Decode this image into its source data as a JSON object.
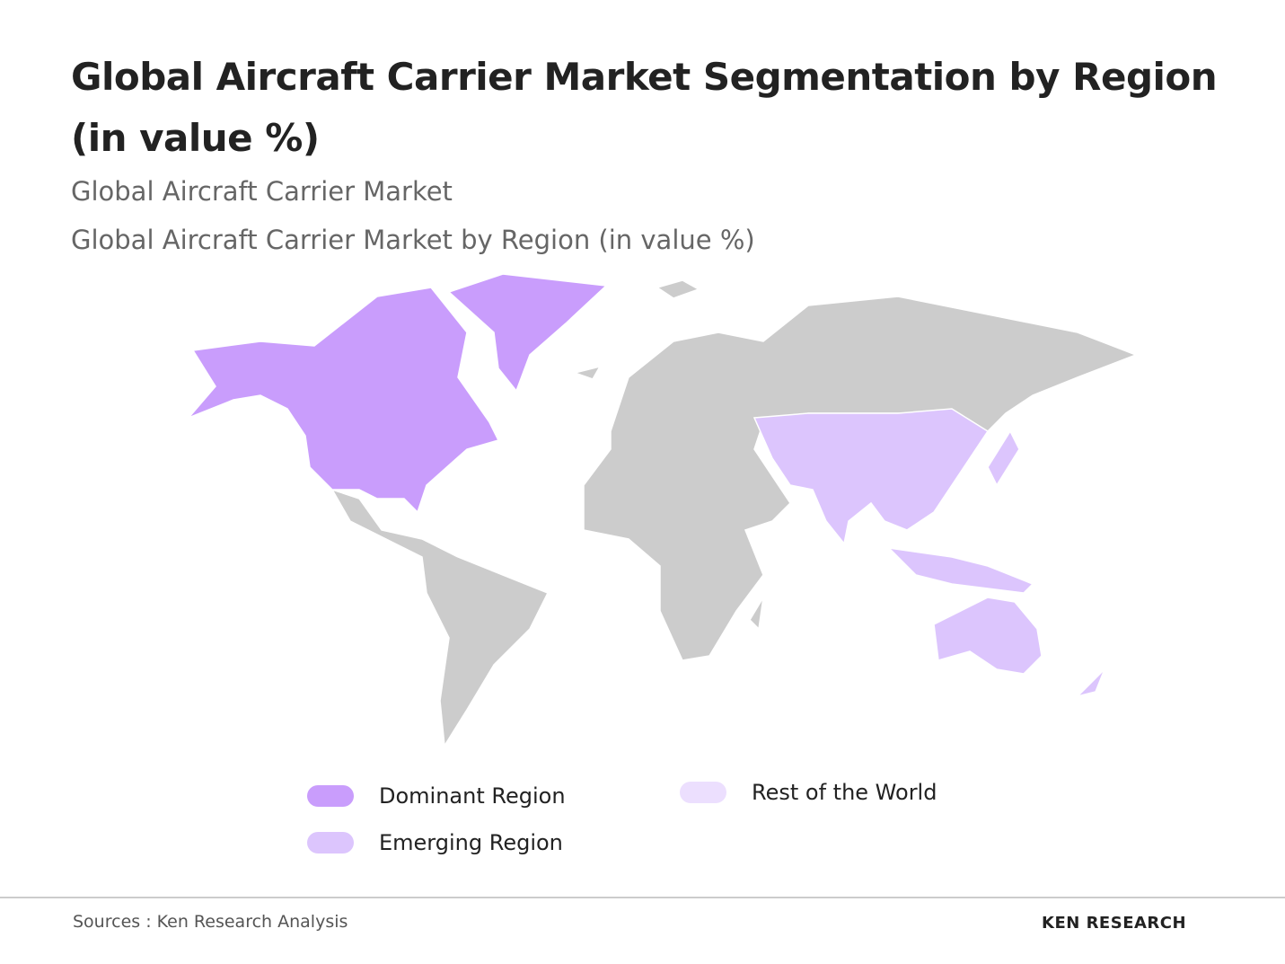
{
  "header": {
    "title": "Global Aircraft Carrier Market Segmentation by Region (in value %)",
    "subtitle": "Global Aircraft Carrier Market",
    "caption": "Global Aircraft Carrier Market by Region (in value %)"
  },
  "legend": {
    "items": [
      {
        "name": "Dominant Region",
        "color": "#c99dfc"
      },
      {
        "name": "Emerging Region",
        "color": "#dcc5fd"
      },
      {
        "name": "Rest of the World",
        "color": "#ecdffe"
      }
    ]
  },
  "footer": {
    "source": "Sources : Ken Research Analysis",
    "brand": "KEN RESEARCH"
  }
}
